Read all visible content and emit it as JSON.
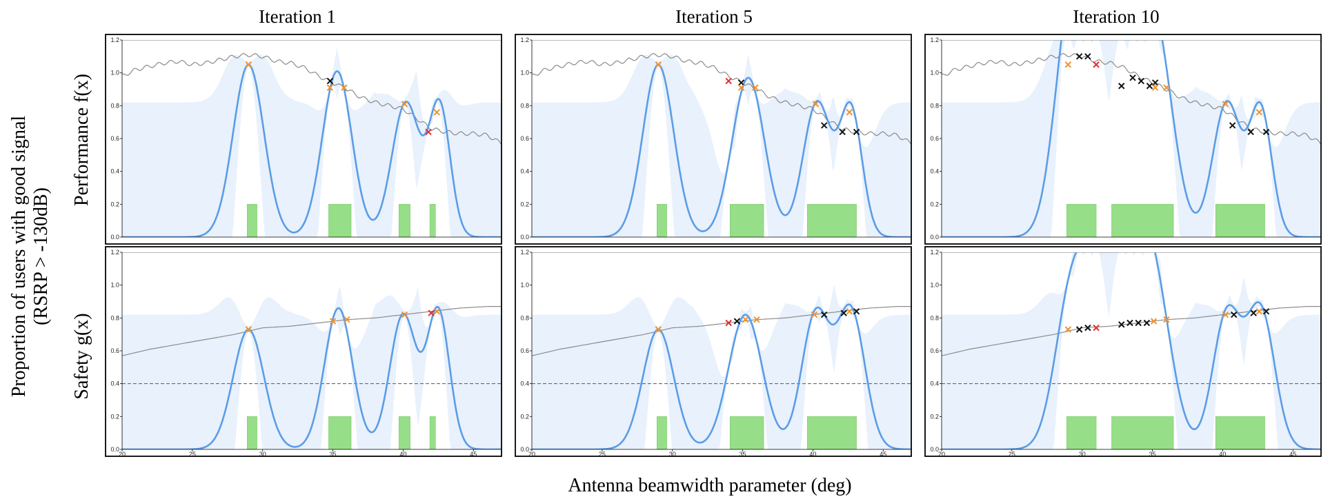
{
  "figure": {
    "column_titles": [
      "Iteration 1",
      "Iteration 5",
      "Iteration 10"
    ],
    "row_labels": [
      "Performance f(x)",
      "Safety g(x)"
    ],
    "ylabel": "Proportion of users with good signal",
    "ylabel_line2": "(RSRP > -130dB)",
    "xlabel": "Antenna beamwidth parameter (deg)"
  },
  "chart_data": {
    "type": "line",
    "xlim": [
      20,
      47
    ],
    "ylim": [
      0,
      1.2
    ],
    "xticks": [
      20,
      25,
      30,
      35,
      40,
      45
    ],
    "yticks": [
      0.0,
      0.2,
      0.4,
      0.6,
      0.8,
      1.0,
      1.2
    ],
    "safety_threshold": 0.4,
    "colors": {
      "posterior_mean": "#5b9ce6",
      "confidence_band": "#e8f1fc",
      "true_function": "#8a8a8a",
      "safe_set": "#97de89",
      "initial_points": "#f0922e",
      "new_points": "#111111",
      "latest_point": "#e03030",
      "threshold": "#555555"
    },
    "true_performance": {
      "x": [
        20,
        21,
        22,
        23,
        24,
        25,
        26,
        27,
        28,
        29,
        30,
        31,
        32,
        33,
        34,
        35,
        36,
        37,
        38,
        39,
        40,
        41,
        42,
        43,
        44,
        45,
        46,
        47
      ],
      "y": [
        0.98,
        1.02,
        1.04,
        1.06,
        1.07,
        1.05,
        1.06,
        1.08,
        1.1,
        1.11,
        1.1,
        1.07,
        1.06,
        1.03,
        0.98,
        0.94,
        0.9,
        0.85,
        0.82,
        0.8,
        0.78,
        0.72,
        0.66,
        0.64,
        0.63,
        0.63,
        0.62,
        0.57
      ]
    },
    "true_safety": {
      "x": [
        20,
        22,
        24,
        26,
        28,
        30,
        32,
        34,
        36,
        38,
        40,
        42,
        44,
        46,
        47
      ],
      "y": [
        0.57,
        0.61,
        0.64,
        0.67,
        0.7,
        0.74,
        0.75,
        0.77,
        0.79,
        0.8,
        0.82,
        0.84,
        0.86,
        0.87,
        0.87
      ]
    },
    "panels": [
      {
        "iteration": "Iteration 1",
        "safe_sets": [
          [
            28.9,
            29.6
          ],
          [
            34.7,
            36.3
          ],
          [
            39.7,
            40.5
          ],
          [
            41.9,
            42.3
          ]
        ],
        "perf_peaks": [
          [
            29.0,
            1.05,
            1.1
          ],
          [
            35.3,
            1.01,
            1.05
          ],
          [
            40.2,
            0.82,
            1.0
          ],
          [
            42.6,
            0.79,
            0.75
          ]
        ],
        "safe_peaks": [
          [
            29.0,
            0.73,
            1.1
          ],
          [
            35.4,
            0.86,
            1.0
          ],
          [
            40.0,
            0.82,
            0.95
          ],
          [
            42.5,
            0.84,
            0.8
          ]
        ],
        "points_perf": [
          {
            "x": 29.0,
            "y": 1.05,
            "c": "o"
          },
          {
            "x": 34.8,
            "y": 0.95,
            "c": "k"
          },
          {
            "x": 34.8,
            "y": 0.91,
            "c": "o"
          },
          {
            "x": 35.8,
            "y": 0.91,
            "c": "o"
          },
          {
            "x": 40.1,
            "y": 0.81,
            "c": "o"
          },
          {
            "x": 41.8,
            "y": 0.64,
            "c": "r"
          },
          {
            "x": 42.4,
            "y": 0.76,
            "c": "o"
          }
        ],
        "points_safe": [
          {
            "x": 29.0,
            "y": 0.73,
            "c": "o"
          },
          {
            "x": 35.0,
            "y": 0.78,
            "c": "o"
          },
          {
            "x": 36.0,
            "y": 0.79,
            "c": "o"
          },
          {
            "x": 40.1,
            "y": 0.82,
            "c": "o"
          },
          {
            "x": 42.0,
            "y": 0.83,
            "c": "r"
          },
          {
            "x": 42.4,
            "y": 0.84,
            "c": "o"
          }
        ]
      },
      {
        "iteration": "Iteration 5",
        "safe_sets": [
          [
            28.9,
            29.6
          ],
          [
            34.1,
            36.5
          ],
          [
            39.6,
            43.1
          ]
        ],
        "perf_peaks": [
          [
            29.0,
            1.05,
            1.1
          ],
          [
            35.4,
            0.97,
            1.15
          ],
          [
            40.3,
            0.82,
            1.0
          ],
          [
            42.7,
            0.77,
            0.8
          ]
        ],
        "safe_peaks": [
          [
            29.0,
            0.73,
            1.1
          ],
          [
            35.2,
            0.82,
            1.2
          ],
          [
            40.2,
            0.82,
            1.0
          ],
          [
            42.7,
            0.84,
            1.0
          ]
        ],
        "points_perf": [
          {
            "x": 29.0,
            "y": 1.05,
            "c": "o"
          },
          {
            "x": 34.0,
            "y": 0.95,
            "c": "r"
          },
          {
            "x": 34.9,
            "y": 0.94,
            "c": "k"
          },
          {
            "x": 34.9,
            "y": 0.91,
            "c": "o"
          },
          {
            "x": 35.9,
            "y": 0.91,
            "c": "o"
          },
          {
            "x": 40.2,
            "y": 0.81,
            "c": "o"
          },
          {
            "x": 40.8,
            "y": 0.68,
            "c": "k"
          },
          {
            "x": 42.1,
            "y": 0.64,
            "c": "k"
          },
          {
            "x": 43.1,
            "y": 0.64,
            "c": "k"
          },
          {
            "x": 42.6,
            "y": 0.76,
            "c": "o"
          }
        ],
        "points_safe": [
          {
            "x": 29.0,
            "y": 0.73,
            "c": "o"
          },
          {
            "x": 34.0,
            "y": 0.77,
            "c": "r"
          },
          {
            "x": 34.6,
            "y": 0.78,
            "c": "k"
          },
          {
            "x": 35.2,
            "y": 0.79,
            "c": "o"
          },
          {
            "x": 36.0,
            "y": 0.79,
            "c": "o"
          },
          {
            "x": 40.1,
            "y": 0.82,
            "c": "o"
          },
          {
            "x": 40.8,
            "y": 0.82,
            "c": "k"
          },
          {
            "x": 42.2,
            "y": 0.83,
            "c": "k"
          },
          {
            "x": 42.6,
            "y": 0.84,
            "c": "o"
          },
          {
            "x": 43.1,
            "y": 0.84,
            "c": "k"
          }
        ]
      },
      {
        "iteration": "Iteration 10",
        "safe_sets": [
          [
            28.9,
            31.0
          ],
          [
            32.1,
            36.5
          ],
          [
            39.5,
            43.0
          ]
        ],
        "perf_peaks": [
          [
            29.0,
            1.05,
            1.1
          ],
          [
            30.5,
            1.08,
            1.15
          ],
          [
            32.2,
            0.95,
            1.1
          ],
          [
            33.9,
            0.96,
            1.1
          ],
          [
            35.5,
            0.96,
            1.15
          ],
          [
            40.3,
            0.82,
            1.0
          ],
          [
            42.7,
            0.77,
            0.8
          ]
        ],
        "safe_peaks": [
          [
            29.0,
            0.73,
            1.1
          ],
          [
            30.5,
            0.74,
            1.1
          ],
          [
            32.2,
            0.75,
            1.1
          ],
          [
            33.9,
            0.76,
            1.1
          ],
          [
            35.3,
            0.8,
            1.2
          ],
          [
            40.3,
            0.82,
            1.0
          ],
          [
            42.7,
            0.84,
            1.0
          ]
        ],
        "points_perf": [
          {
            "x": 29.0,
            "y": 1.05,
            "c": "o"
          },
          {
            "x": 29.8,
            "y": 1.1,
            "c": "k"
          },
          {
            "x": 30.4,
            "y": 1.1,
            "c": "k"
          },
          {
            "x": 31.0,
            "y": 1.05,
            "c": "r"
          },
          {
            "x": 32.8,
            "y": 0.92,
            "c": "k"
          },
          {
            "x": 33.6,
            "y": 0.97,
            "c": "k"
          },
          {
            "x": 34.2,
            "y": 0.95,
            "c": "k"
          },
          {
            "x": 34.8,
            "y": 0.92,
            "c": "k"
          },
          {
            "x": 35.2,
            "y": 0.94,
            "c": "k"
          },
          {
            "x": 35.2,
            "y": 0.91,
            "c": "o"
          },
          {
            "x": 36.0,
            "y": 0.91,
            "c": "o"
          },
          {
            "x": 40.2,
            "y": 0.81,
            "c": "o"
          },
          {
            "x": 40.7,
            "y": 0.68,
            "c": "k"
          },
          {
            "x": 42.0,
            "y": 0.64,
            "c": "k"
          },
          {
            "x": 43.1,
            "y": 0.64,
            "c": "k"
          },
          {
            "x": 42.6,
            "y": 0.76,
            "c": "o"
          }
        ],
        "points_safe": [
          {
            "x": 29.0,
            "y": 0.73,
            "c": "o"
          },
          {
            "x": 29.8,
            "y": 0.73,
            "c": "k"
          },
          {
            "x": 30.4,
            "y": 0.74,
            "c": "k"
          },
          {
            "x": 31.0,
            "y": 0.74,
            "c": "r"
          },
          {
            "x": 32.8,
            "y": 0.76,
            "c": "k"
          },
          {
            "x": 33.4,
            "y": 0.77,
            "c": "k"
          },
          {
            "x": 34.0,
            "y": 0.77,
            "c": "k"
          },
          {
            "x": 34.6,
            "y": 0.77,
            "c": "k"
          },
          {
            "x": 35.1,
            "y": 0.78,
            "c": "o"
          },
          {
            "x": 36.0,
            "y": 0.79,
            "c": "o"
          },
          {
            "x": 40.2,
            "y": 0.82,
            "c": "o"
          },
          {
            "x": 40.8,
            "y": 0.82,
            "c": "k"
          },
          {
            "x": 42.2,
            "y": 0.83,
            "c": "k"
          },
          {
            "x": 42.6,
            "y": 0.84,
            "c": "o"
          },
          {
            "x": 43.1,
            "y": 0.84,
            "c": "k"
          }
        ]
      }
    ]
  }
}
